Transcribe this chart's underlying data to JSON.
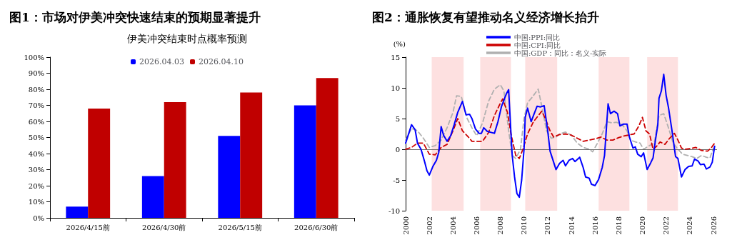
{
  "chart_data": [
    {
      "type": "bar",
      "title": "图1：市场对伊美冲突快速结束的预期显著提升",
      "subtitle": "伊美冲突结束时点概率预测",
      "categories": [
        "2026/4/15前",
        "2026/4/30前",
        "2026/5/15前",
        "2026/6/30前"
      ],
      "series": [
        {
          "name": "2026.04.03",
          "color": "#0000ff",
          "values": [
            7,
            26,
            51,
            70
          ]
        },
        {
          "name": "2026.04.10",
          "color": "#c00000",
          "values": [
            68,
            72,
            78,
            87
          ]
        }
      ],
      "ylim": [
        0,
        100
      ],
      "yticks": [
        {
          "value": 0,
          "label": "0%"
        },
        {
          "value": 10,
          "label": "10%"
        },
        {
          "value": 20,
          "label": "20%"
        },
        {
          "value": 30,
          "label": "30%"
        },
        {
          "value": 40,
          "label": "40%"
        },
        {
          "value": 50,
          "label": "50%"
        },
        {
          "value": 60,
          "label": "60%"
        },
        {
          "value": 70,
          "label": "70%"
        },
        {
          "value": 80,
          "label": "80%"
        },
        {
          "value": 90,
          "label": "90%"
        },
        {
          "value": 100,
          "label": "100%"
        }
      ],
      "legend": "top",
      "grid": false
    },
    {
      "type": "line",
      "title": "图2：通胀恢复有望推动名义经济增长抬升",
      "ylabel": "(%)",
      "marker": "none",
      "legend": "top",
      "grid": false,
      "xlim": [
        2000,
        2026.3
      ],
      "xticks": [
        2000,
        2002,
        2004,
        2006,
        2008,
        2010,
        2012,
        2014,
        2016,
        2018,
        2020,
        2022,
        2024,
        2026
      ],
      "ylim": [
        -10,
        15
      ],
      "yticks": [
        -10,
        -5,
        0,
        5,
        10,
        15
      ],
      "ref_lines": [
        {
          "axis": "y",
          "value": 0,
          "color": "#666666"
        }
      ],
      "bands": [
        {
          "axis": "x",
          "from": 2002.2,
          "to": 2004.9,
          "color": "#fde0e0"
        },
        {
          "axis": "x",
          "from": 2006.3,
          "to": 2008.9,
          "color": "#fde0e0"
        },
        {
          "axis": "x",
          "from": 2010.1,
          "to": 2012.8,
          "color": "#fde0e0"
        },
        {
          "axis": "x",
          "from": 2016.3,
          "to": 2018.9,
          "color": "#fde0e0"
        },
        {
          "axis": "x",
          "from": 2020.4,
          "to": 2023.0,
          "color": "#fde0e0"
        }
      ],
      "series": [
        {
          "name": "中国:PPI:同比",
          "color": "#0000ff",
          "line_style": "solid",
          "x": [
            2000.0,
            2000.5,
            2000.8,
            2001.0,
            2001.3,
            2001.6,
            2001.8,
            2002.0,
            2002.3,
            2002.6,
            2002.8,
            2003.0,
            2003.2,
            2003.5,
            2003.8,
            2004.1,
            2004.4,
            2004.8,
            2005.1,
            2005.4,
            2005.6,
            2005.9,
            2006.2,
            2006.4,
            2006.6,
            2006.9,
            2007.5,
            2007.8,
            2008.1,
            2008.5,
            2008.7,
            2008.9,
            2009.0,
            2009.2,
            2009.4,
            2009.6,
            2009.8,
            2010.0,
            2010.1,
            2010.3,
            2010.6,
            2010.8,
            2011.1,
            2011.4,
            2011.7,
            2012.0,
            2012.2,
            2012.4,
            2012.7,
            2013.0,
            2013.3,
            2013.5,
            2013.8,
            2014.1,
            2014.3,
            2014.7,
            2015.0,
            2015.2,
            2015.5,
            2015.7,
            2016.0,
            2016.3,
            2016.6,
            2016.8,
            2017.1,
            2017.3,
            2017.6,
            2017.9,
            2018.1,
            2018.4,
            2018.7,
            2018.9,
            2019.2,
            2019.4,
            2019.6,
            2019.9,
            2020.1,
            2020.4,
            2020.7,
            2020.9,
            2021.1,
            2021.3,
            2021.4,
            2021.6,
            2021.8,
            2022.0,
            2022.2,
            2022.5,
            2022.8,
            2023.0,
            2023.3,
            2023.6,
            2023.9,
            2024.2,
            2024.4,
            2024.7,
            2024.9,
            2025.2,
            2025.4,
            2025.7,
            2025.9,
            2026.1
          ],
          "values": [
            1.0,
            4.0,
            3.2,
            1.0,
            0.0,
            -2.0,
            -3.5,
            -4.2,
            -2.8,
            -1.8,
            -0.5,
            3.7,
            2.3,
            1.3,
            2.2,
            4.0,
            6.0,
            7.8,
            5.6,
            5.7,
            5.0,
            3.3,
            2.6,
            2.6,
            3.5,
            2.9,
            2.6,
            4.5,
            7.0,
            9.0,
            9.7,
            2.5,
            -1.0,
            -4.5,
            -7.2,
            -7.8,
            -5.0,
            0.0,
            5.2,
            6.7,
            4.5,
            5.5,
            7.0,
            6.9,
            7.1,
            3.0,
            -0.3,
            -1.5,
            -3.3,
            -2.3,
            -1.8,
            -2.7,
            -1.8,
            -1.5,
            -2.0,
            -1.3,
            -3.0,
            -4.5,
            -4.7,
            -5.7,
            -5.9,
            -4.9,
            -3.0,
            -1.0,
            7.4,
            5.8,
            6.2,
            5.8,
            3.8,
            4.1,
            4.1,
            2.0,
            0.2,
            0.4,
            -0.8,
            -1.2,
            -0.6,
            -3.3,
            -2.2,
            -1.4,
            1.5,
            4.0,
            8.3,
            9.5,
            12.2,
            8.8,
            6.8,
            3.0,
            -1.2,
            -1.5,
            -4.5,
            -3.3,
            -2.8,
            -2.7,
            -1.6,
            -1.9,
            -2.5,
            -2.4,
            -3.2,
            -2.9,
            -2.1,
            0.5
          ]
        },
        {
          "name": "中国:CPI:同比",
          "color": "#cc0000",
          "line_style": "dashed",
          "x": [
            2000.0,
            2000.5,
            2001.0,
            2001.5,
            2002.0,
            2002.5,
            2003.0,
            2003.5,
            2004.0,
            2004.4,
            2004.8,
            2005.3,
            2005.6,
            2006.0,
            2006.5,
            2007.0,
            2007.5,
            2008.0,
            2008.2,
            2008.6,
            2008.9,
            2009.3,
            2009.6,
            2009.9,
            2010.3,
            2010.8,
            2011.5,
            2011.8,
            2012.2,
            2012.5,
            2013.0,
            2013.5,
            2014.0,
            2014.5,
            2015.0,
            2015.5,
            2016.0,
            2016.5,
            2017.0,
            2017.5,
            2018.0,
            2018.5,
            2018.8,
            2019.3,
            2019.7,
            2020.0,
            2020.3,
            2020.6,
            2020.9,
            2021.2,
            2021.5,
            2021.9,
            2022.3,
            2022.7,
            2023.0,
            2023.3,
            2023.6,
            2024.0,
            2024.5,
            2025.0,
            2025.5,
            2025.8,
            2026.1
          ],
          "values": [
            0.0,
            0.3,
            1.0,
            1.0,
            -0.8,
            -0.9,
            0.3,
            0.8,
            3.0,
            5.0,
            3.0,
            2.0,
            1.3,
            1.3,
            1.3,
            2.7,
            5.5,
            7.5,
            8.2,
            6.0,
            2.5,
            -1.0,
            -1.5,
            0.0,
            2.5,
            4.5,
            6.2,
            5.0,
            3.0,
            2.0,
            2.4,
            2.5,
            2.3,
            1.8,
            1.3,
            1.5,
            1.7,
            2.0,
            1.5,
            1.5,
            1.9,
            2.2,
            2.3,
            2.5,
            3.8,
            5.2,
            3.0,
            2.5,
            0.0,
            0.5,
            1.2,
            0.8,
            1.8,
            2.6,
            1.5,
            0.2,
            0.0,
            0.1,
            0.3,
            -0.2,
            -0.3,
            0.2,
            1.0
          ]
        },
        {
          "name": "中国:GDP：同比：名义-实际",
          "color": "#b0b0b0",
          "line_style": "dashed",
          "x": [
            2000.0,
            2000.5,
            2001.0,
            2001.5,
            2002.0,
            2002.5,
            2003.0,
            2003.5,
            2004.0,
            2004.3,
            2004.7,
            2005.2,
            2005.6,
            2006.0,
            2006.5,
            2007.0,
            2007.5,
            2008.0,
            2008.3,
            2008.7,
            2009.0,
            2009.3,
            2009.7,
            2010.0,
            2010.3,
            2010.7,
            2011.2,
            2011.5,
            2011.9,
            2012.3,
            2012.7,
            2013.0,
            2013.5,
            2014.0,
            2014.5,
            2015.0,
            2015.5,
            2015.8,
            2016.2,
            2016.6,
            2017.0,
            2017.4,
            2017.8,
            2018.3,
            2018.7,
            2019.0,
            2019.4,
            2019.8,
            2020.1,
            2020.5,
            2021.0,
            2021.4,
            2021.8,
            2022.2,
            2022.6,
            2023.0,
            2023.4,
            2023.8,
            2024.2,
            2024.6,
            2025.0,
            2025.4,
            2025.7,
            2026.0
          ],
          "values": [
            1.5,
            3.4,
            3.0,
            1.8,
            0.3,
            0.6,
            1.5,
            3.5,
            6.0,
            8.7,
            8.6,
            5.0,
            3.5,
            2.2,
            4.3,
            7.8,
            9.8,
            10.5,
            9.5,
            3.0,
            -1.0,
            -1.5,
            0.0,
            5.0,
            7.6,
            8.5,
            9.8,
            7.0,
            3.0,
            1.8,
            2.0,
            2.5,
            2.8,
            2.3,
            1.0,
            0.3,
            0.0,
            -0.4,
            1.0,
            2.5,
            4.5,
            4.3,
            4.4,
            4.0,
            3.0,
            1.5,
            1.2,
            1.0,
            0.0,
            0.5,
            1.0,
            5.5,
            5.8,
            3.5,
            1.0,
            0.0,
            -0.8,
            -1.0,
            -1.2,
            -1.5,
            -1.0,
            -1.3,
            -1.4,
            0.2
          ]
        }
      ]
    }
  ]
}
